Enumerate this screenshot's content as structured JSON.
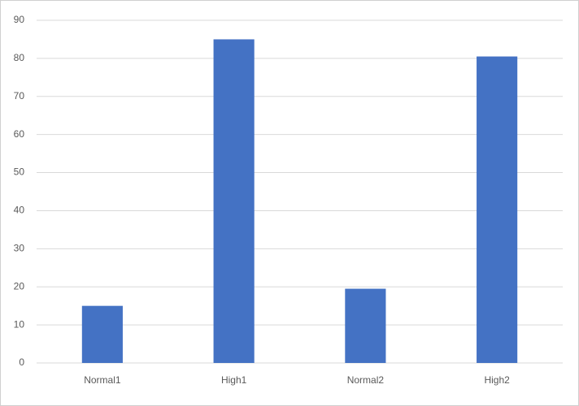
{
  "chart_data": {
    "type": "bar",
    "categories": [
      "Normal1",
      "High1",
      "Normal2",
      "High2"
    ],
    "values": [
      15,
      85,
      19.5,
      80.5
    ],
    "color": "#4472c4",
    "ylim": [
      0,
      90
    ],
    "yticks": [
      0,
      10,
      20,
      30,
      40,
      50,
      60,
      70,
      80,
      90
    ],
    "grid": true
  }
}
